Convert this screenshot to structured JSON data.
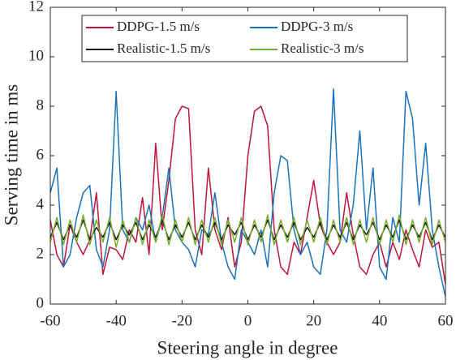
{
  "chart_data": {
    "type": "line",
    "xlabel": "Steering angle in degree",
    "ylabel": "Serving time in ms",
    "x": [
      -60,
      -58,
      -56,
      -54,
      -52,
      -50,
      -48,
      -46,
      -44,
      -42,
      -40,
      -38,
      -36,
      -34,
      -32,
      -30,
      -28,
      -26,
      -24,
      -22,
      -20,
      -18,
      -16,
      -14,
      -12,
      -10,
      -8,
      -6,
      -4,
      -2,
      0,
      2,
      4,
      6,
      8,
      10,
      12,
      14,
      16,
      18,
      20,
      22,
      24,
      26,
      28,
      30,
      32,
      34,
      36,
      38,
      40,
      42,
      44,
      46,
      48,
      50,
      52,
      54,
      56,
      58,
      60
    ],
    "series": [
      {
        "name": "DDPG-1.5 m/s",
        "color": "#c0143c",
        "values": [
          3.4,
          2.0,
          1.5,
          3.2,
          2.5,
          2.0,
          2.6,
          4.5,
          1.2,
          2.3,
          2.2,
          1.8,
          3.0,
          2.5,
          4.3,
          2.0,
          6.5,
          3.0,
          5.0,
          7.5,
          8.0,
          7.9,
          3.0,
          2.0,
          5.5,
          3.0,
          2.2,
          3.5,
          1.5,
          2.5,
          6.0,
          7.8,
          8.0,
          7.2,
          3.0,
          1.5,
          1.2,
          2.5,
          2.0,
          3.5,
          5.0,
          3.2,
          2.5,
          2.0,
          2.5,
          4.5,
          2.8,
          1.5,
          1.2,
          2.0,
          2.5,
          1.5,
          2.5,
          1.8,
          3.0,
          2.2,
          1.5,
          3.0,
          2.3,
          2.5,
          0.8
        ]
      },
      {
        "name": "DDPG-3 m/s",
        "color": "#1a72bb",
        "values": [
          4.5,
          5.5,
          1.5,
          2.0,
          3.5,
          4.5,
          4.8,
          2.2,
          1.5,
          3.0,
          8.6,
          3.0,
          2.5,
          3.5,
          3.0,
          4.0,
          2.5,
          3.5,
          5.5,
          3.0,
          2.5,
          2.2,
          1.5,
          3.0,
          2.8,
          4.5,
          2.5,
          1.5,
          1.0,
          3.0,
          2.5,
          2.0,
          3.0,
          1.5,
          4.5,
          6.0,
          5.8,
          3.0,
          2.0,
          2.5,
          1.5,
          1.2,
          3.0,
          8.7,
          3.0,
          2.5,
          4.0,
          7.0,
          3.0,
          5.5,
          1.5,
          1.0,
          3.5,
          2.5,
          8.6,
          7.5,
          4.0,
          6.5,
          3.0,
          1.5,
          0.3
        ]
      },
      {
        "name": "Realistic-1.5 m/s",
        "color": "#1a1a1a",
        "values": [
          2.7,
          3.3,
          2.6,
          3.2,
          2.7,
          3.4,
          2.6,
          3.1,
          2.7,
          3.3,
          2.6,
          3.2,
          2.8,
          3.3,
          2.6,
          3.2,
          2.7,
          3.4,
          2.6,
          3.2,
          2.7,
          3.3,
          2.6,
          3.2,
          2.7,
          3.3,
          2.6,
          3.2,
          2.8,
          3.3,
          2.6,
          3.2,
          2.7,
          3.4,
          2.6,
          3.2,
          2.7,
          3.3,
          2.6,
          3.1,
          2.7,
          3.3,
          2.6,
          3.2,
          2.7,
          3.3,
          2.6,
          3.2,
          2.8,
          3.3,
          2.6,
          3.2,
          2.7,
          3.4,
          2.6,
          3.2,
          2.7,
          3.3,
          2.6,
          3.2,
          2.7
        ]
      },
      {
        "name": "Realistic-3 m/s",
        "color": "#77ac30",
        "values": [
          2.5,
          3.5,
          2.4,
          3.4,
          2.5,
          3.6,
          2.4,
          3.4,
          2.5,
          3.5,
          2.3,
          3.4,
          2.5,
          3.5,
          2.4,
          3.4,
          2.5,
          3.6,
          2.4,
          3.4,
          2.5,
          3.5,
          2.4,
          3.4,
          2.5,
          3.5,
          2.4,
          3.4,
          2.5,
          3.5,
          2.4,
          3.4,
          2.5,
          3.6,
          2.4,
          3.4,
          2.5,
          3.5,
          2.4,
          3.4,
          2.5,
          3.5,
          2.4,
          3.4,
          2.5,
          3.5,
          2.4,
          3.4,
          2.5,
          3.5,
          2.4,
          3.4,
          2.5,
          3.6,
          2.4,
          3.4,
          2.5,
          3.5,
          2.4,
          3.4,
          2.5
        ]
      }
    ],
    "xlim": [
      -60,
      60
    ],
    "xticks": [
      -60,
      -40,
      -20,
      0,
      20,
      40,
      60
    ],
    "ylim": [
      0,
      12
    ],
    "yticks": [
      0,
      2,
      4,
      6,
      8,
      10,
      12
    ],
    "grid": false,
    "legend": "top"
  }
}
